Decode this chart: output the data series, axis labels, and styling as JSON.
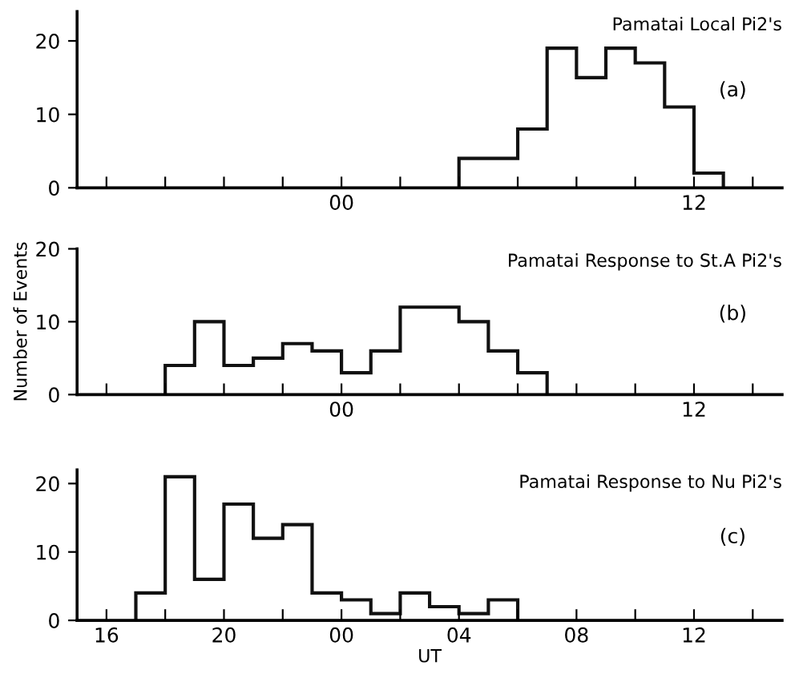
{
  "chart_data": [
    {
      "type": "histogram",
      "title": "Pamatai Local Pi2's",
      "annotations": [
        "(a)"
      ],
      "bins": [
        "2000-01-02T04:00",
        "2000-01-02T05:00",
        "2000-01-02T06:00",
        "2000-01-02T07:00",
        "2000-01-02T08:00",
        "2000-01-02T09:00",
        "2000-01-02T10:00",
        "2000-01-02T11:00",
        "2000-01-02T12:00",
        "2000-01-02T13:00"
      ],
      "values": [
        4,
        4,
        8,
        19,
        15,
        19,
        17,
        11,
        2
      ],
      "color": "#111111",
      "xlim": [
        "2000-01-01T15:00",
        "2000-01-02T15:00"
      ],
      "ylim": [
        0,
        24
      ],
      "yticks": [
        0,
        10,
        20
      ],
      "xticks": [
        {
          "value": "2000-01-01T16:00",
          "label": null
        },
        {
          "value": "2000-01-01T18:00",
          "label": null
        },
        {
          "value": "2000-01-01T20:00",
          "label": null
        },
        {
          "value": "2000-01-01T22:00",
          "label": null
        },
        {
          "value": "2000-01-02T00:00",
          "label": "00"
        },
        {
          "value": "2000-01-02T02:00",
          "label": null
        },
        {
          "value": "2000-01-02T04:00",
          "label": null
        },
        {
          "value": "2000-01-02T06:00",
          "label": null
        },
        {
          "value": "2000-01-02T08:00",
          "label": null
        },
        {
          "value": "2000-01-02T10:00",
          "label": null
        },
        {
          "value": "2000-01-02T12:00",
          "label": "12"
        },
        {
          "value": "2000-01-02T14:00",
          "label": null
        }
      ]
    },
    {
      "type": "histogram",
      "title": "Pamatai Response to St.A Pi2's",
      "annotations": [
        "(b)"
      ],
      "ylabel": "Number of Events",
      "bins": [
        "2000-01-01T18:00",
        "2000-01-01T19:00",
        "2000-01-01T20:00",
        "2000-01-01T21:00",
        "2000-01-01T22:00",
        "2000-01-01T23:00",
        "2000-01-02T00:00",
        "2000-01-02T01:00",
        "2000-01-02T02:00",
        "2000-01-02T03:00",
        "2000-01-02T04:00",
        "2000-01-02T05:00",
        "2000-01-02T06:00",
        "2000-01-02T07:00"
      ],
      "values": [
        4,
        10,
        4,
        5,
        7,
        6,
        3,
        6,
        12,
        12,
        10,
        6,
        3
      ],
      "color": "#111111",
      "xlim": [
        "2000-01-01T15:00",
        "2000-01-02T15:00"
      ],
      "ylim": [
        0,
        20
      ],
      "yticks": [
        0,
        10,
        20
      ],
      "xticks": [
        {
          "value": "2000-01-01T16:00",
          "label": null
        },
        {
          "value": "2000-01-01T18:00",
          "label": null
        },
        {
          "value": "2000-01-01T20:00",
          "label": null
        },
        {
          "value": "2000-01-01T22:00",
          "label": null
        },
        {
          "value": "2000-01-02T00:00",
          "label": "00"
        },
        {
          "value": "2000-01-02T02:00",
          "label": null
        },
        {
          "value": "2000-01-02T04:00",
          "label": null
        },
        {
          "value": "2000-01-02T06:00",
          "label": null
        },
        {
          "value": "2000-01-02T08:00",
          "label": null
        },
        {
          "value": "2000-01-02T10:00",
          "label": null
        },
        {
          "value": "2000-01-02T12:00",
          "label": "12"
        },
        {
          "value": "2000-01-02T14:00",
          "label": null
        }
      ]
    },
    {
      "type": "histogram",
      "title": "Pamatai Response to Nu Pi2's",
      "annotations": [
        "(c)"
      ],
      "xlabel": "UT",
      "bins": [
        "2000-01-01T17:00",
        "2000-01-01T18:00",
        "2000-01-01T19:00",
        "2000-01-01T20:00",
        "2000-01-01T21:00",
        "2000-01-01T22:00",
        "2000-01-01T23:00",
        "2000-01-02T00:00",
        "2000-01-02T01:00",
        "2000-01-02T02:00",
        "2000-01-02T03:00",
        "2000-01-02T04:00",
        "2000-01-02T05:00",
        "2000-01-02T06:00"
      ],
      "values": [
        4,
        21,
        6,
        17,
        12,
        14,
        4,
        3,
        1,
        4,
        2,
        1,
        3
      ],
      "color": "#111111",
      "xlim": [
        "2000-01-01T15:00",
        "2000-01-02T15:00"
      ],
      "ylim": [
        0,
        22
      ],
      "yticks": [
        0,
        10,
        20
      ],
      "xticks": [
        {
          "value": "2000-01-01T16:00",
          "label": "16"
        },
        {
          "value": "2000-01-01T18:00",
          "label": null
        },
        {
          "value": "2000-01-01T20:00",
          "label": "20"
        },
        {
          "value": "2000-01-01T22:00",
          "label": null
        },
        {
          "value": "2000-01-02T00:00",
          "label": "00"
        },
        {
          "value": "2000-01-02T02:00",
          "label": null
        },
        {
          "value": "2000-01-02T04:00",
          "label": "04"
        },
        {
          "value": "2000-01-02T06:00",
          "label": null
        },
        {
          "value": "2000-01-02T08:00",
          "label": "08"
        },
        {
          "value": "2000-01-02T10:00",
          "label": null
        },
        {
          "value": "2000-01-02T12:00",
          "label": "12"
        },
        {
          "value": "2000-01-02T14:00",
          "label": null
        }
      ]
    }
  ]
}
